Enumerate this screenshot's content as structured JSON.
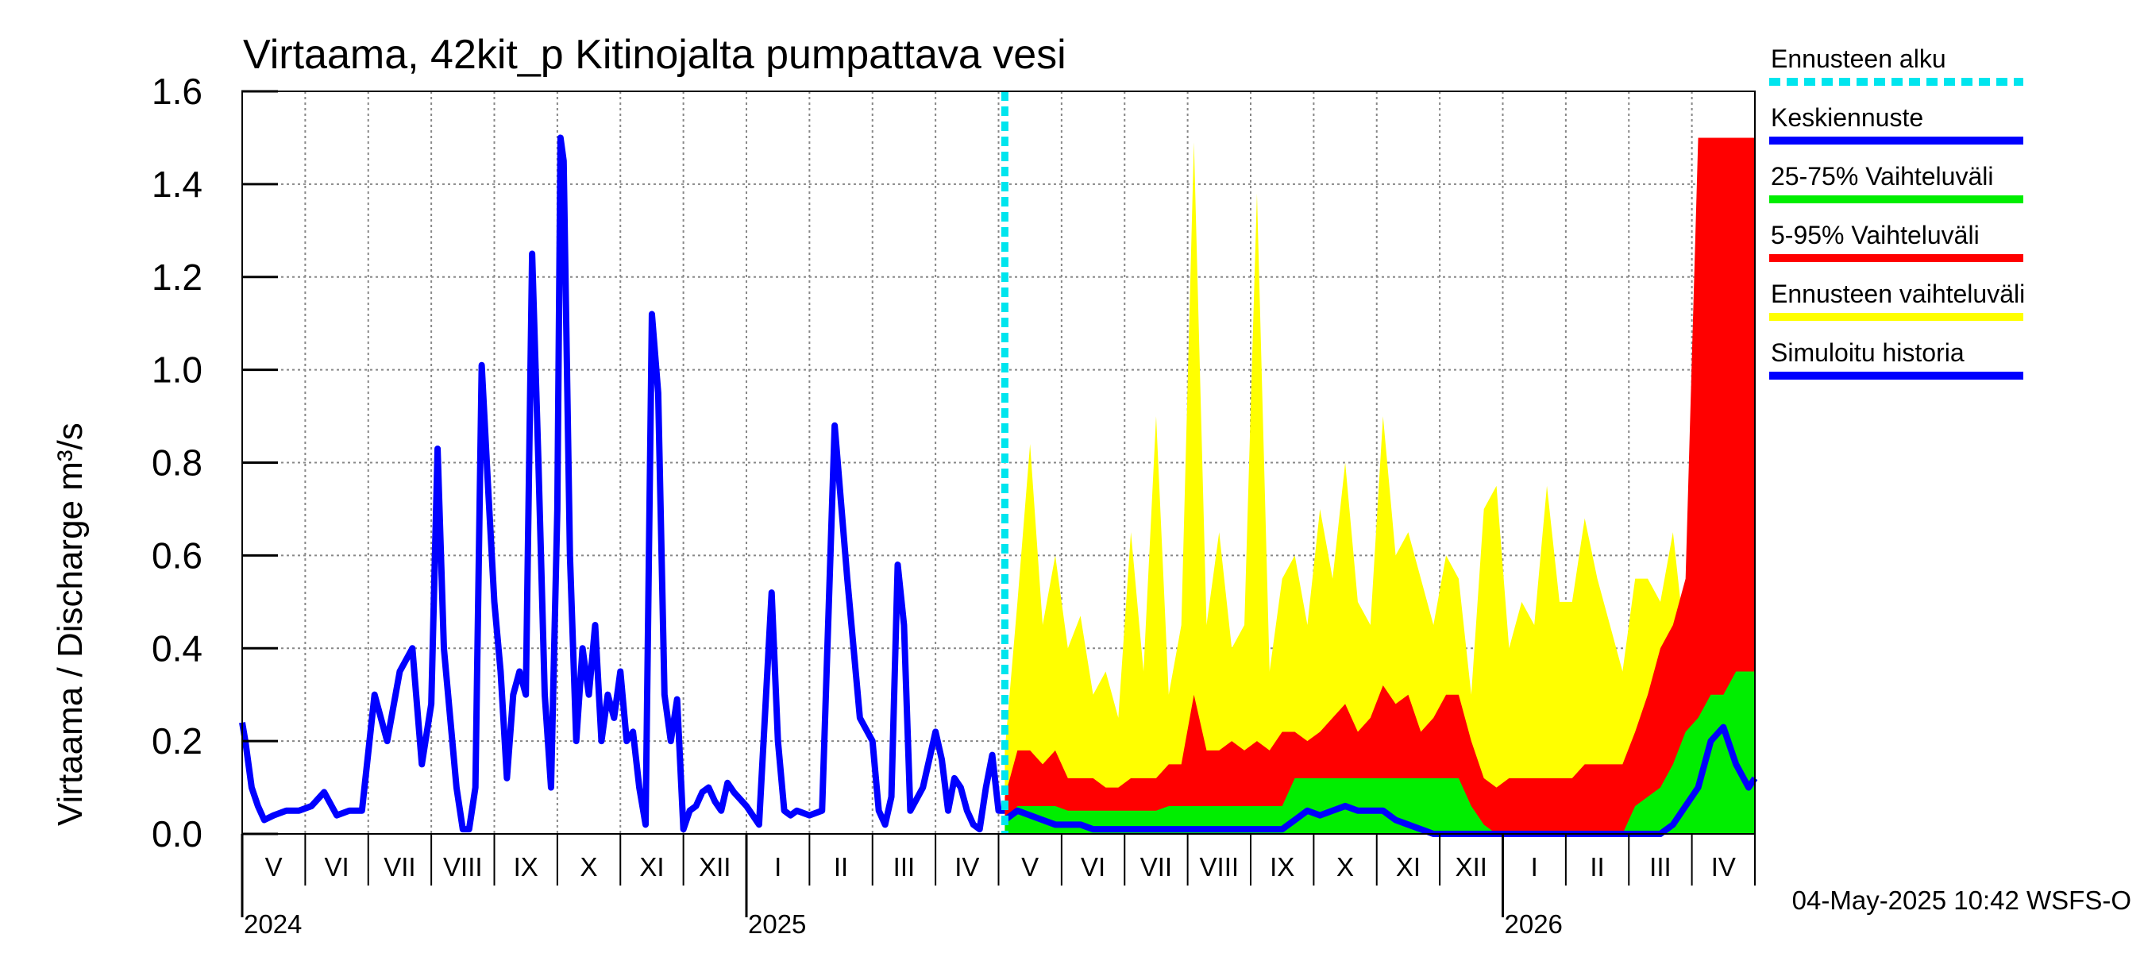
{
  "chart_data": {
    "type": "area",
    "title": "Virtaama, 42kit_p Kitinojalta pumpattava vesi",
    "ylabel": "Virtaama / Discharge    m³/s",
    "ylim": [
      0,
      1.6
    ],
    "yticks": [
      "0.0",
      "0.2",
      "0.4",
      "0.6",
      "0.8",
      "1.0",
      "1.2",
      "1.4",
      "1.6"
    ],
    "x_range_months": [
      0,
      24
    ],
    "month_labels": [
      "V",
      "VI",
      "VII",
      "VIII",
      "IX",
      "X",
      "XI",
      "XII",
      "I",
      "II",
      "III",
      "IV",
      "V",
      "VI",
      "VII",
      "VIII",
      "IX",
      "X",
      "XI",
      "XII",
      "I",
      "II",
      "III",
      "IV"
    ],
    "year_labels": [
      {
        "label": "2024",
        "month_index": 0
      },
      {
        "label": "2025",
        "month_index": 8
      },
      {
        "label": "2026",
        "month_index": 20
      }
    ],
    "forecast_start": 12.1,
    "footer": "04-May-2025 10:42 WSFS-O",
    "legend": [
      {
        "label": "Ennusteen alku",
        "color": "#00e5ee",
        "style": "dashed"
      },
      {
        "label": "Keskiennuste",
        "color": "#0000ff",
        "style": "solid"
      },
      {
        "label": "25-75% Vaihteluväli",
        "color": "#00ee00",
        "style": "solid"
      },
      {
        "label": "5-95% Vaihteluväli",
        "color": "#ff0000",
        "style": "solid"
      },
      {
        "label": "Ennusteen vaihteluväli",
        "color": "#ffff00",
        "style": "solid"
      },
      {
        "label": "Simuloitu historia",
        "color": "#0000ff",
        "style": "solid"
      }
    ],
    "series": [
      {
        "name": "Simuloitu historia",
        "color": "#0000ff",
        "x": [
          0,
          0.05,
          0.15,
          0.25,
          0.35,
          0.5,
          0.7,
          0.9,
          1.1,
          1.3,
          1.5,
          1.7,
          1.9,
          2.1,
          2.3,
          2.5,
          2.7,
          2.85,
          3.0,
          3.1,
          3.2,
          3.3,
          3.4,
          3.5,
          3.6,
          3.7,
          3.8,
          3.9,
          4.0,
          4.1,
          4.2,
          4.3,
          4.4,
          4.5,
          4.6,
          4.7,
          4.8,
          4.9,
          5.0,
          5.05,
          5.1,
          5.2,
          5.3,
          5.4,
          5.5,
          5.6,
          5.7,
          5.8,
          5.9,
          6.0,
          6.1,
          6.2,
          6.3,
          6.4,
          6.5,
          6.6,
          6.7,
          6.8,
          6.9,
          7.0,
          7.1,
          7.2,
          7.3,
          7.4,
          7.5,
          7.6,
          7.7,
          7.8,
          8.0,
          8.2,
          8.4,
          8.5,
          8.6,
          8.7,
          8.8,
          9.0,
          9.2,
          9.4,
          9.6,
          9.8,
          10.0,
          10.1,
          10.2,
          10.3,
          10.4,
          10.5,
          10.6,
          10.8,
          11.0,
          11.1,
          11.2,
          11.3,
          11.4,
          11.5,
          11.6,
          11.7,
          11.8,
          11.9,
          12.0,
          12.1
        ],
        "values": [
          0.24,
          0.2,
          0.1,
          0.06,
          0.03,
          0.04,
          0.05,
          0.05,
          0.06,
          0.09,
          0.04,
          0.05,
          0.05,
          0.3,
          0.2,
          0.35,
          0.4,
          0.15,
          0.28,
          0.83,
          0.4,
          0.25,
          0.1,
          0.01,
          0.01,
          0.1,
          1.01,
          0.75,
          0.5,
          0.35,
          0.12,
          0.3,
          0.35,
          0.3,
          1.25,
          0.8,
          0.3,
          0.1,
          0.7,
          1.5,
          1.45,
          0.6,
          0.2,
          0.4,
          0.3,
          0.45,
          0.2,
          0.3,
          0.25,
          0.35,
          0.2,
          0.22,
          0.1,
          0.02,
          1.12,
          0.95,
          0.3,
          0.2,
          0.29,
          0.01,
          0.05,
          0.06,
          0.09,
          0.1,
          0.07,
          0.05,
          0.11,
          0.09,
          0.06,
          0.02,
          0.52,
          0.2,
          0.05,
          0.04,
          0.05,
          0.04,
          0.05,
          0.88,
          0.55,
          0.25,
          0.2,
          0.05,
          0.02,
          0.08,
          0.58,
          0.45,
          0.05,
          0.1,
          0.22,
          0.16,
          0.05,
          0.12,
          0.1,
          0.05,
          0.02,
          0.01,
          0.1,
          0.17,
          0.05,
          0.05
        ]
      },
      {
        "name": "Ennusteen vaihteluväli",
        "color": "#ffff00",
        "x": [
          12.1,
          12.3,
          12.5,
          12.7,
          12.9,
          13.1,
          13.3,
          13.5,
          13.7,
          13.9,
          14.1,
          14.3,
          14.5,
          14.7,
          14.9,
          15.1,
          15.3,
          15.5,
          15.7,
          15.9,
          16.1,
          16.3,
          16.5,
          16.7,
          16.9,
          17.1,
          17.3,
          17.5,
          17.7,
          17.9,
          18.1,
          18.3,
          18.5,
          18.7,
          18.9,
          19.1,
          19.3,
          19.5,
          19.7,
          19.9,
          20.1,
          20.3,
          20.5,
          20.7,
          20.9,
          21.1,
          21.3,
          21.5,
          21.7,
          21.9,
          22.1,
          22.3,
          22.5,
          22.7,
          22.9,
          23.1,
          23.3,
          23.5,
          23.7,
          23.9,
          24.0
        ],
        "values": [
          0.18,
          0.5,
          0.84,
          0.45,
          0.6,
          0.4,
          0.47,
          0.3,
          0.35,
          0.25,
          0.65,
          0.35,
          0.9,
          0.3,
          0.45,
          1.49,
          0.45,
          0.65,
          0.4,
          0.45,
          1.38,
          0.35,
          0.55,
          0.6,
          0.45,
          0.7,
          0.55,
          0.8,
          0.5,
          0.45,
          0.9,
          0.6,
          0.65,
          0.55,
          0.45,
          0.6,
          0.55,
          0.3,
          0.7,
          0.75,
          0.4,
          0.5,
          0.45,
          0.75,
          0.5,
          0.5,
          0.68,
          0.55,
          0.45,
          0.35,
          0.55,
          0.55,
          0.5,
          0.65,
          0.4,
          0.8,
          1.0,
          0.95,
          1.5,
          1.5,
          1.5
        ]
      },
      {
        "name": "5-95% Vaihteluväli",
        "color": "#ff0000",
        "x": [
          12.1,
          12.3,
          12.5,
          12.7,
          12.9,
          13.1,
          13.3,
          13.5,
          13.7,
          13.9,
          14.1,
          14.3,
          14.5,
          14.7,
          14.9,
          15.1,
          15.3,
          15.5,
          15.7,
          15.9,
          16.1,
          16.3,
          16.5,
          16.7,
          16.9,
          17.1,
          17.3,
          17.5,
          17.7,
          17.9,
          18.1,
          18.3,
          18.5,
          18.7,
          18.9,
          19.1,
          19.3,
          19.5,
          19.7,
          19.9,
          20.1,
          20.3,
          20.5,
          20.7,
          20.9,
          21.1,
          21.3,
          21.5,
          21.7,
          21.9,
          22.1,
          22.3,
          22.5,
          22.7,
          22.9,
          23.1,
          23.3,
          23.5,
          23.7,
          23.9,
          24.0
        ],
        "values": [
          0.08,
          0.18,
          0.18,
          0.15,
          0.18,
          0.12,
          0.12,
          0.12,
          0.1,
          0.1,
          0.12,
          0.12,
          0.12,
          0.15,
          0.15,
          0.3,
          0.18,
          0.18,
          0.2,
          0.18,
          0.2,
          0.18,
          0.22,
          0.22,
          0.2,
          0.22,
          0.25,
          0.28,
          0.22,
          0.25,
          0.32,
          0.28,
          0.3,
          0.22,
          0.25,
          0.3,
          0.3,
          0.2,
          0.12,
          0.1,
          0.12,
          0.12,
          0.12,
          0.12,
          0.12,
          0.12,
          0.15,
          0.15,
          0.15,
          0.15,
          0.22,
          0.3,
          0.4,
          0.45,
          0.55,
          1.5,
          1.5,
          1.5,
          1.5,
          1.5,
          1.5
        ]
      },
      {
        "name": "25-75% Vaihteluväli",
        "color": "#00ee00",
        "x": [
          12.1,
          12.3,
          12.5,
          12.7,
          12.9,
          13.1,
          13.3,
          13.5,
          13.7,
          13.9,
          14.1,
          14.3,
          14.5,
          14.7,
          14.9,
          15.1,
          15.3,
          15.5,
          15.7,
          15.9,
          16.1,
          16.3,
          16.5,
          16.7,
          16.9,
          17.1,
          17.3,
          17.5,
          17.7,
          17.9,
          18.1,
          18.3,
          18.5,
          18.7,
          18.9,
          19.1,
          19.3,
          19.5,
          19.7,
          19.9,
          20.1,
          20.3,
          20.5,
          20.7,
          20.9,
          21.1,
          21.3,
          21.5,
          21.7,
          21.9,
          22.1,
          22.3,
          22.5,
          22.7,
          22.9,
          23.1,
          23.3,
          23.5,
          23.7,
          23.9,
          24.0
        ],
        "values": [
          0.02,
          0.06,
          0.06,
          0.06,
          0.06,
          0.05,
          0.05,
          0.05,
          0.05,
          0.05,
          0.05,
          0.05,
          0.05,
          0.06,
          0.06,
          0.06,
          0.06,
          0.06,
          0.06,
          0.06,
          0.06,
          0.06,
          0.06,
          0.12,
          0.12,
          0.12,
          0.12,
          0.12,
          0.12,
          0.12,
          0.12,
          0.12,
          0.12,
          0.12,
          0.12,
          0.12,
          0.12,
          0.06,
          0.02,
          0.0,
          0.0,
          0.0,
          0.0,
          0.0,
          0.0,
          0.0,
          0.0,
          0.0,
          0.0,
          0.0,
          0.06,
          0.08,
          0.1,
          0.15,
          0.22,
          0.25,
          0.3,
          0.3,
          0.35,
          0.35,
          0.35
        ]
      },
      {
        "name": "Keskiennuste",
        "color": "#0000ff",
        "x": [
          12.1,
          12.3,
          12.5,
          12.7,
          12.9,
          13.1,
          13.3,
          13.5,
          13.7,
          13.9,
          14.1,
          14.3,
          14.5,
          14.7,
          14.9,
          15.1,
          15.3,
          15.5,
          15.7,
          15.9,
          16.1,
          16.3,
          16.5,
          16.7,
          16.9,
          17.1,
          17.3,
          17.5,
          17.7,
          17.9,
          18.1,
          18.3,
          18.5,
          18.7,
          18.9,
          19.1,
          19.3,
          19.5,
          19.7,
          19.9,
          20.1,
          20.3,
          20.5,
          20.7,
          20.9,
          21.1,
          21.3,
          21.5,
          21.7,
          21.9,
          22.1,
          22.3,
          22.5,
          22.7,
          22.9,
          23.1,
          23.3,
          23.5,
          23.7,
          23.9,
          24.0
        ],
        "values": [
          0.03,
          0.05,
          0.04,
          0.03,
          0.02,
          0.02,
          0.02,
          0.01,
          0.01,
          0.01,
          0.01,
          0.01,
          0.01,
          0.01,
          0.01,
          0.01,
          0.01,
          0.01,
          0.01,
          0.01,
          0.01,
          0.01,
          0.01,
          0.03,
          0.05,
          0.04,
          0.05,
          0.06,
          0.05,
          0.05,
          0.05,
          0.03,
          0.02,
          0.01,
          0.0,
          0.0,
          0.0,
          0.0,
          0.0,
          0.0,
          0.0,
          0.0,
          0.0,
          0.0,
          0.0,
          0.0,
          0.0,
          0.0,
          0.0,
          0.0,
          0.0,
          0.0,
          0.0,
          0.02,
          0.06,
          0.1,
          0.2,
          0.23,
          0.15,
          0.1,
          0.12
        ]
      }
    ]
  }
}
